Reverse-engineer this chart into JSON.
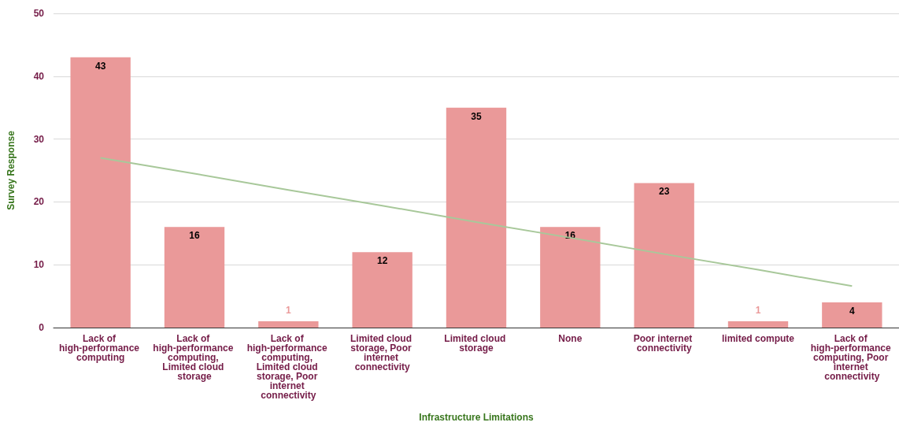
{
  "chart_data": {
    "type": "bar",
    "xlabel": "Infrastructure Limitations",
    "ylabel": "Survey Response",
    "categories": [
      "Lack of high-performance computing",
      "Lack of high-performance computing, Limited cloud storage",
      "Lack of high-performance computing, Limited cloud storage, Poor internet connectivity",
      "Limited cloud storage, Poor internet connectivity",
      "Limited cloud storage",
      "None",
      "Poor internet connectivity",
      "limited compute",
      "Lack of high-performance computing, Poor internet connectivity"
    ],
    "series": [
      {
        "color": "#ea9999",
        "values": [
          43,
          16,
          1,
          12,
          35,
          16,
          23,
          1,
          4
        ],
        "value_labels": [
          "43",
          "16",
          "1",
          "12",
          "35",
          "16",
          "23",
          "1",
          "4"
        ]
      },
      {
        "type": "line",
        "color": "#a8c89a",
        "values": [
          27.0,
          24.5,
          21.9,
          19.4,
          16.8,
          14.3,
          11.7,
          9.2,
          6.6
        ]
      }
    ],
    "ylim": [
      0,
      50
    ],
    "yticks": [
      0,
      10,
      20,
      30,
      40,
      50
    ],
    "grid": "y",
    "marker": "none",
    "line_style": "solid"
  }
}
